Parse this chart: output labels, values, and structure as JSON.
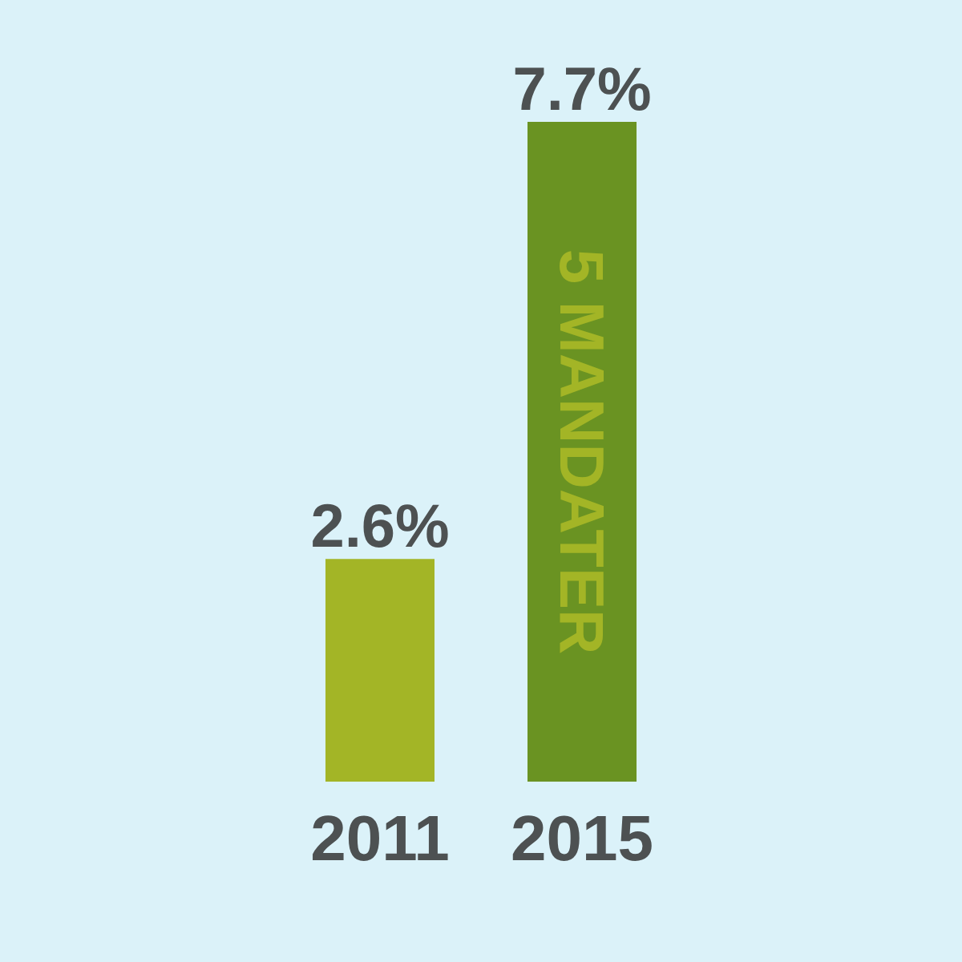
{
  "chart_data": {
    "type": "bar",
    "categories": [
      "2011",
      "2015"
    ],
    "values": [
      2.6,
      7.7
    ],
    "colors": [
      "#a3b526",
      "#6a9322"
    ],
    "value_labels": [
      "2.6%",
      "7.7%"
    ],
    "annotations": [
      "5 MANDATER"
    ]
  }
}
